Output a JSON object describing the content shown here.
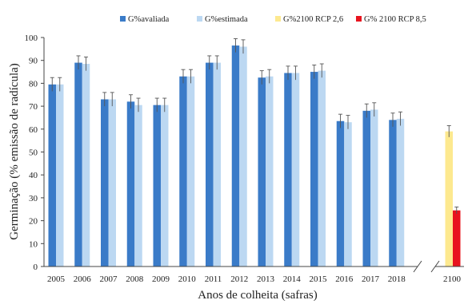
{
  "chart_data": {
    "type": "bar",
    "title": "",
    "xlabel": "Anos de colheita (safras)",
    "ylabel": "Germinação (% emissão de radícula)",
    "ylim": [
      0,
      100
    ],
    "yticks": [
      0,
      10,
      20,
      30,
      40,
      50,
      60,
      70,
      80,
      90,
      100
    ],
    "grid": false,
    "legend_position": "top",
    "axis_break": "between 2018 and 2100",
    "categories": [
      "2005",
      "2006",
      "2007",
      "2008",
      "2009",
      "2010",
      "2011",
      "2012",
      "2013",
      "2014",
      "2015",
      "2016",
      "2017",
      "2018",
      "2100"
    ],
    "series": [
      {
        "name": "G%avaliada",
        "color": "#3a7bc8",
        "values": [
          79.5,
          89,
          73,
          72,
          70.5,
          83,
          89,
          96.5,
          82.5,
          84.5,
          85,
          63.5,
          68,
          64,
          null
        ],
        "errors": [
          3,
          3,
          3,
          3,
          3,
          3,
          3,
          3,
          3,
          3,
          3,
          3,
          3,
          3,
          null
        ]
      },
      {
        "name": "G%estimada",
        "color": "#bcd8f2",
        "values": [
          79.5,
          88.5,
          73,
          70.5,
          70.5,
          83,
          89,
          96,
          83,
          84.5,
          85.5,
          63,
          68.5,
          64.5,
          null
        ],
        "errors": [
          3,
          3,
          3,
          3,
          3,
          3,
          3,
          3,
          3,
          3,
          3,
          3,
          3,
          3,
          null
        ]
      },
      {
        "name": "G%2100 RCP 2,6",
        "color": "#fde98f",
        "values": [
          null,
          null,
          null,
          null,
          null,
          null,
          null,
          null,
          null,
          null,
          null,
          null,
          null,
          null,
          59
        ],
        "errors": [
          null,
          null,
          null,
          null,
          null,
          null,
          null,
          null,
          null,
          null,
          null,
          null,
          null,
          null,
          2.5
        ]
      },
      {
        "name": "G% 2100 RCP 8,5",
        "color": "#e8141e",
        "values": [
          null,
          null,
          null,
          null,
          null,
          null,
          null,
          null,
          null,
          null,
          null,
          null,
          null,
          null,
          24.5
        ],
        "errors": [
          null,
          null,
          null,
          null,
          null,
          null,
          null,
          null,
          null,
          null,
          null,
          null,
          null,
          null,
          1.5
        ]
      }
    ]
  }
}
